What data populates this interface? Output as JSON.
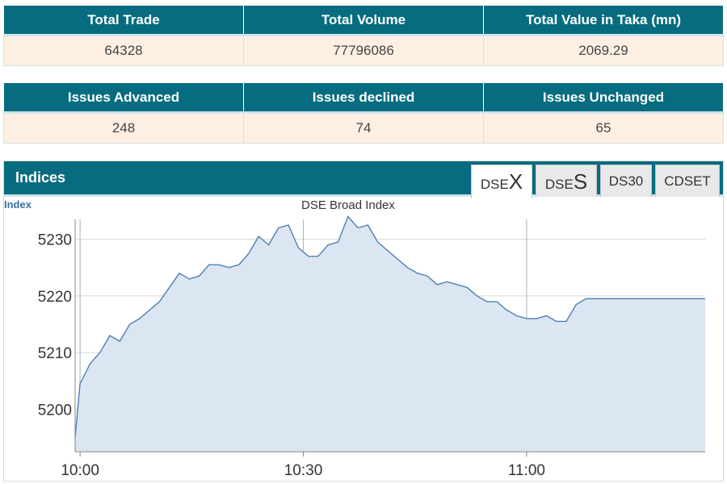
{
  "market_summary": {
    "headers": [
      "Total Trade",
      "Total Volume",
      "Total Value in Taka (mn)"
    ],
    "values": [
      "64328",
      "77796086",
      "2069.29"
    ]
  },
  "issues_summary": {
    "headers": [
      "Issues Advanced",
      "Issues declined",
      "Issues Unchanged"
    ],
    "values": [
      "248",
      "74",
      "65"
    ]
  },
  "indices": {
    "title": "Indices",
    "tabs": [
      {
        "prefix": "DSE",
        "suffix": "X",
        "active": true
      },
      {
        "prefix": "DSE",
        "suffix": "S",
        "active": false
      },
      {
        "prefix": "DS30",
        "suffix": "",
        "active": false
      },
      {
        "prefix": "CDSET",
        "suffix": "",
        "active": false
      }
    ]
  },
  "colors": {
    "header_bg": "#076c7f",
    "cell_bg": "#fdf0e3",
    "line": "#4f7fb3",
    "fill": "#dbe6f2"
  },
  "chart_data": {
    "type": "area",
    "title": "DSE Broad Index",
    "ylabel": "Index",
    "xlabel": "",
    "ylim": [
      5192.5,
      5233.5
    ],
    "yticks": [
      5200,
      5210,
      5220,
      5230
    ],
    "xlim": [
      -1,
      126
    ],
    "xticks": [
      {
        "v": 0,
        "label": "10:00"
      },
      {
        "v": 45,
        "label": "10:30"
      },
      {
        "v": 90,
        "label": "11:00"
      }
    ],
    "grid": true,
    "series": [
      {
        "x": [
          -1,
          0,
          2,
          4,
          6,
          8,
          10,
          12,
          14,
          16,
          18,
          20,
          22,
          24,
          26,
          28,
          30,
          32,
          34,
          36,
          38,
          40,
          42,
          44,
          46,
          48,
          50,
          52,
          54,
          56,
          58,
          60,
          62,
          64,
          66,
          68,
          70,
          72,
          74,
          76,
          78,
          80,
          82,
          84,
          86,
          88,
          90,
          92,
          94,
          96,
          98,
          100,
          102,
          104,
          106,
          108,
          110,
          112,
          114,
          116,
          118,
          120,
          122,
          124,
          126
        ],
        "values": [
          5195.0,
          5204.5,
          5208.0,
          5210.0,
          5213.0,
          5212.0,
          5215.0,
          5216.0,
          5217.5,
          5219.0,
          5221.5,
          5224.0,
          5223.0,
          5223.5,
          5225.5,
          5225.5,
          5225.0,
          5225.5,
          5227.5,
          5230.5,
          5229.0,
          5232.0,
          5232.5,
          5228.5,
          5227.0,
          5227.0,
          5229.0,
          5229.5,
          5234.0,
          5232.0,
          5232.5,
          5229.5,
          5228.0,
          5226.5,
          5225.0,
          5224.0,
          5223.5,
          5222.0,
          5222.5,
          5222.0,
          5221.5,
          5220.0,
          5219.0,
          5219.0,
          5217.5,
          5216.5,
          5216.0,
          5216.0,
          5216.5,
          5215.5,
          5215.5,
          5218.5,
          5219.5,
          5219.5,
          5219.5,
          5219.5,
          5219.5,
          5219.5,
          5219.5,
          5219.5,
          5219.5,
          5219.5,
          5219.5,
          5219.5,
          5219.5
        ]
      }
    ]
  }
}
